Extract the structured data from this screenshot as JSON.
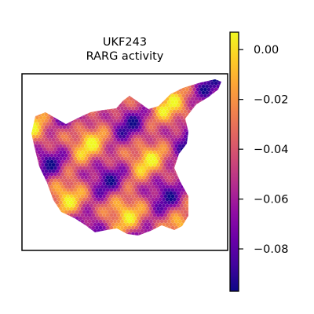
{
  "chart_data": {
    "type": "heatmap",
    "title_line1": "UKF243",
    "title_line2": "RARG activity",
    "xlabel": "",
    "ylabel": "",
    "grid": false,
    "colormap": "plasma",
    "colorbar": {
      "range": [
        -0.097,
        0.007
      ],
      "ticks": [
        0.0,
        -0.02,
        -0.04,
        -0.06,
        -0.08
      ],
      "tick_labels": [
        "0.00",
        "−0.02",
        "−0.04",
        "−0.06",
        "−0.08"
      ]
    },
    "colors": {
      "axes_frame": "#000000",
      "background": "#ffffff",
      "plasma_low": "#0d0887",
      "plasma_high": "#f0f921"
    }
  }
}
